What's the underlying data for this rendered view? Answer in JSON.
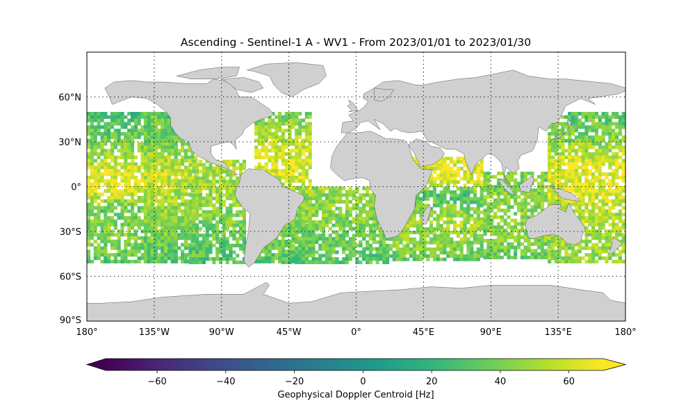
{
  "title": "Ascending - Sentinel-1 A - WV1 - From 2023/01/01 to 2023/01/30",
  "map": {
    "projection": "PlateCarree",
    "extent_lon": [
      -180,
      180
    ],
    "extent_lat": [
      -90,
      90
    ],
    "land_color": "#d0d0d0",
    "coast_color": "#333333",
    "gridlines": "dotted",
    "lon_ticks": [
      {
        "lon": -180,
        "label": "180°"
      },
      {
        "lon": -135,
        "label": "135°W"
      },
      {
        "lon": -90,
        "label": "90°W"
      },
      {
        "lon": -45,
        "label": "45°W"
      },
      {
        "lon": 0,
        "label": "0°"
      },
      {
        "lon": 45,
        "label": "45°E"
      },
      {
        "lon": 90,
        "label": "90°E"
      },
      {
        "lon": 135,
        "label": "135°E"
      },
      {
        "lon": 180,
        "label": "180°"
      }
    ],
    "lat_ticks": [
      {
        "lat": 60,
        "label": "60°N"
      },
      {
        "lat": 30,
        "label": "30°N"
      },
      {
        "lat": 0,
        "label": "0°"
      },
      {
        "lat": -30,
        "label": "30°S"
      },
      {
        "lat": -60,
        "label": "60°S"
      },
      {
        "lat": -90,
        "label": "90°S"
      }
    ]
  },
  "colorbar": {
    "label": "Geophysical Doppler Centroid [Hz]",
    "colormap": "viridis",
    "vmin": -75,
    "vmax": 70,
    "extend": "both",
    "ticks": [
      {
        "value": -60,
        "label": "−60"
      },
      {
        "value": -40,
        "label": "−40"
      },
      {
        "value": -20,
        "label": "−20"
      },
      {
        "value": 0,
        "label": "0"
      },
      {
        "value": 20,
        "label": "20"
      },
      {
        "value": 40,
        "label": "40"
      },
      {
        "value": 60,
        "label": "60"
      }
    ],
    "stops": [
      "#440154",
      "#482878",
      "#3e4989",
      "#31688e",
      "#26828e",
      "#1f9e89",
      "#35b779",
      "#6ece58",
      "#b5de2b",
      "#fde725"
    ]
  },
  "chart_data": {
    "type": "heatmap",
    "title": "Ascending - Sentinel-1 A - WV1 - From 2023/01/01 to 2023/01/30",
    "variable": "Geophysical Doppler Centroid [Hz]",
    "value_range": [
      -75,
      70
    ],
    "swath_regions": [
      {
        "lon": [
          -180,
          -121
        ],
        "lat": [
          -50,
          50
        ],
        "lat_profile": [
          [
            50,
            25
          ],
          [
            42,
            32
          ],
          [
            30,
            40
          ],
          [
            10,
            62
          ],
          [
            0,
            64
          ],
          [
            -15,
            38
          ],
          [
            -35,
            44
          ],
          [
            -50,
            30
          ]
        ]
      },
      {
        "lon": [
          -142,
          -108
        ],
        "lat": [
          -50,
          50
        ],
        "lat_profile": [
          [
            50,
            34
          ],
          [
            30,
            40
          ],
          [
            10,
            58
          ],
          [
            -20,
            44
          ],
          [
            -50,
            32
          ]
        ]
      },
      {
        "lon": [
          -112,
          -75
        ],
        "lat": [
          -50,
          18
        ],
        "lat_profile": [
          [
            18,
            52
          ],
          [
            0,
            50
          ],
          [
            -25,
            40
          ],
          [
            -50,
            30
          ]
        ]
      },
      {
        "lon": [
          -68,
          -30
        ],
        "lat": [
          -50,
          50
        ],
        "lat_profile": [
          [
            50,
            40
          ],
          [
            25,
            60
          ],
          [
            5,
            62
          ],
          [
            -20,
            44
          ],
          [
            -50,
            32
          ]
        ]
      },
      {
        "lon": [
          -50,
          20
        ],
        "lat": [
          -50,
          0
        ],
        "lat_profile": [
          [
            0,
            48
          ],
          [
            -25,
            42
          ],
          [
            -50,
            32
          ]
        ]
      },
      {
        "lon": [
          22,
          85
        ],
        "lat": [
          -48,
          20
        ],
        "lat_profile": [
          [
            20,
            64
          ],
          [
            5,
            62
          ],
          [
            -5,
            28
          ],
          [
            -20,
            50
          ],
          [
            -35,
            46
          ],
          [
            -48,
            34
          ]
        ]
      },
      {
        "lon": [
          85,
          135
        ],
        "lat": [
          -48,
          10
        ],
        "lat_profile": [
          [
            10,
            40
          ],
          [
            -15,
            46
          ],
          [
            -35,
            42
          ],
          [
            -48,
            34
          ]
        ]
      },
      {
        "lon": [
          128,
          180
        ],
        "lat": [
          -50,
          50
        ],
        "lat_profile": [
          [
            50,
            34
          ],
          [
            35,
            40
          ],
          [
            15,
            64
          ],
          [
            0,
            64
          ],
          [
            -15,
            55
          ],
          [
            -30,
            50
          ],
          [
            -50,
            46
          ]
        ]
      }
    ]
  }
}
